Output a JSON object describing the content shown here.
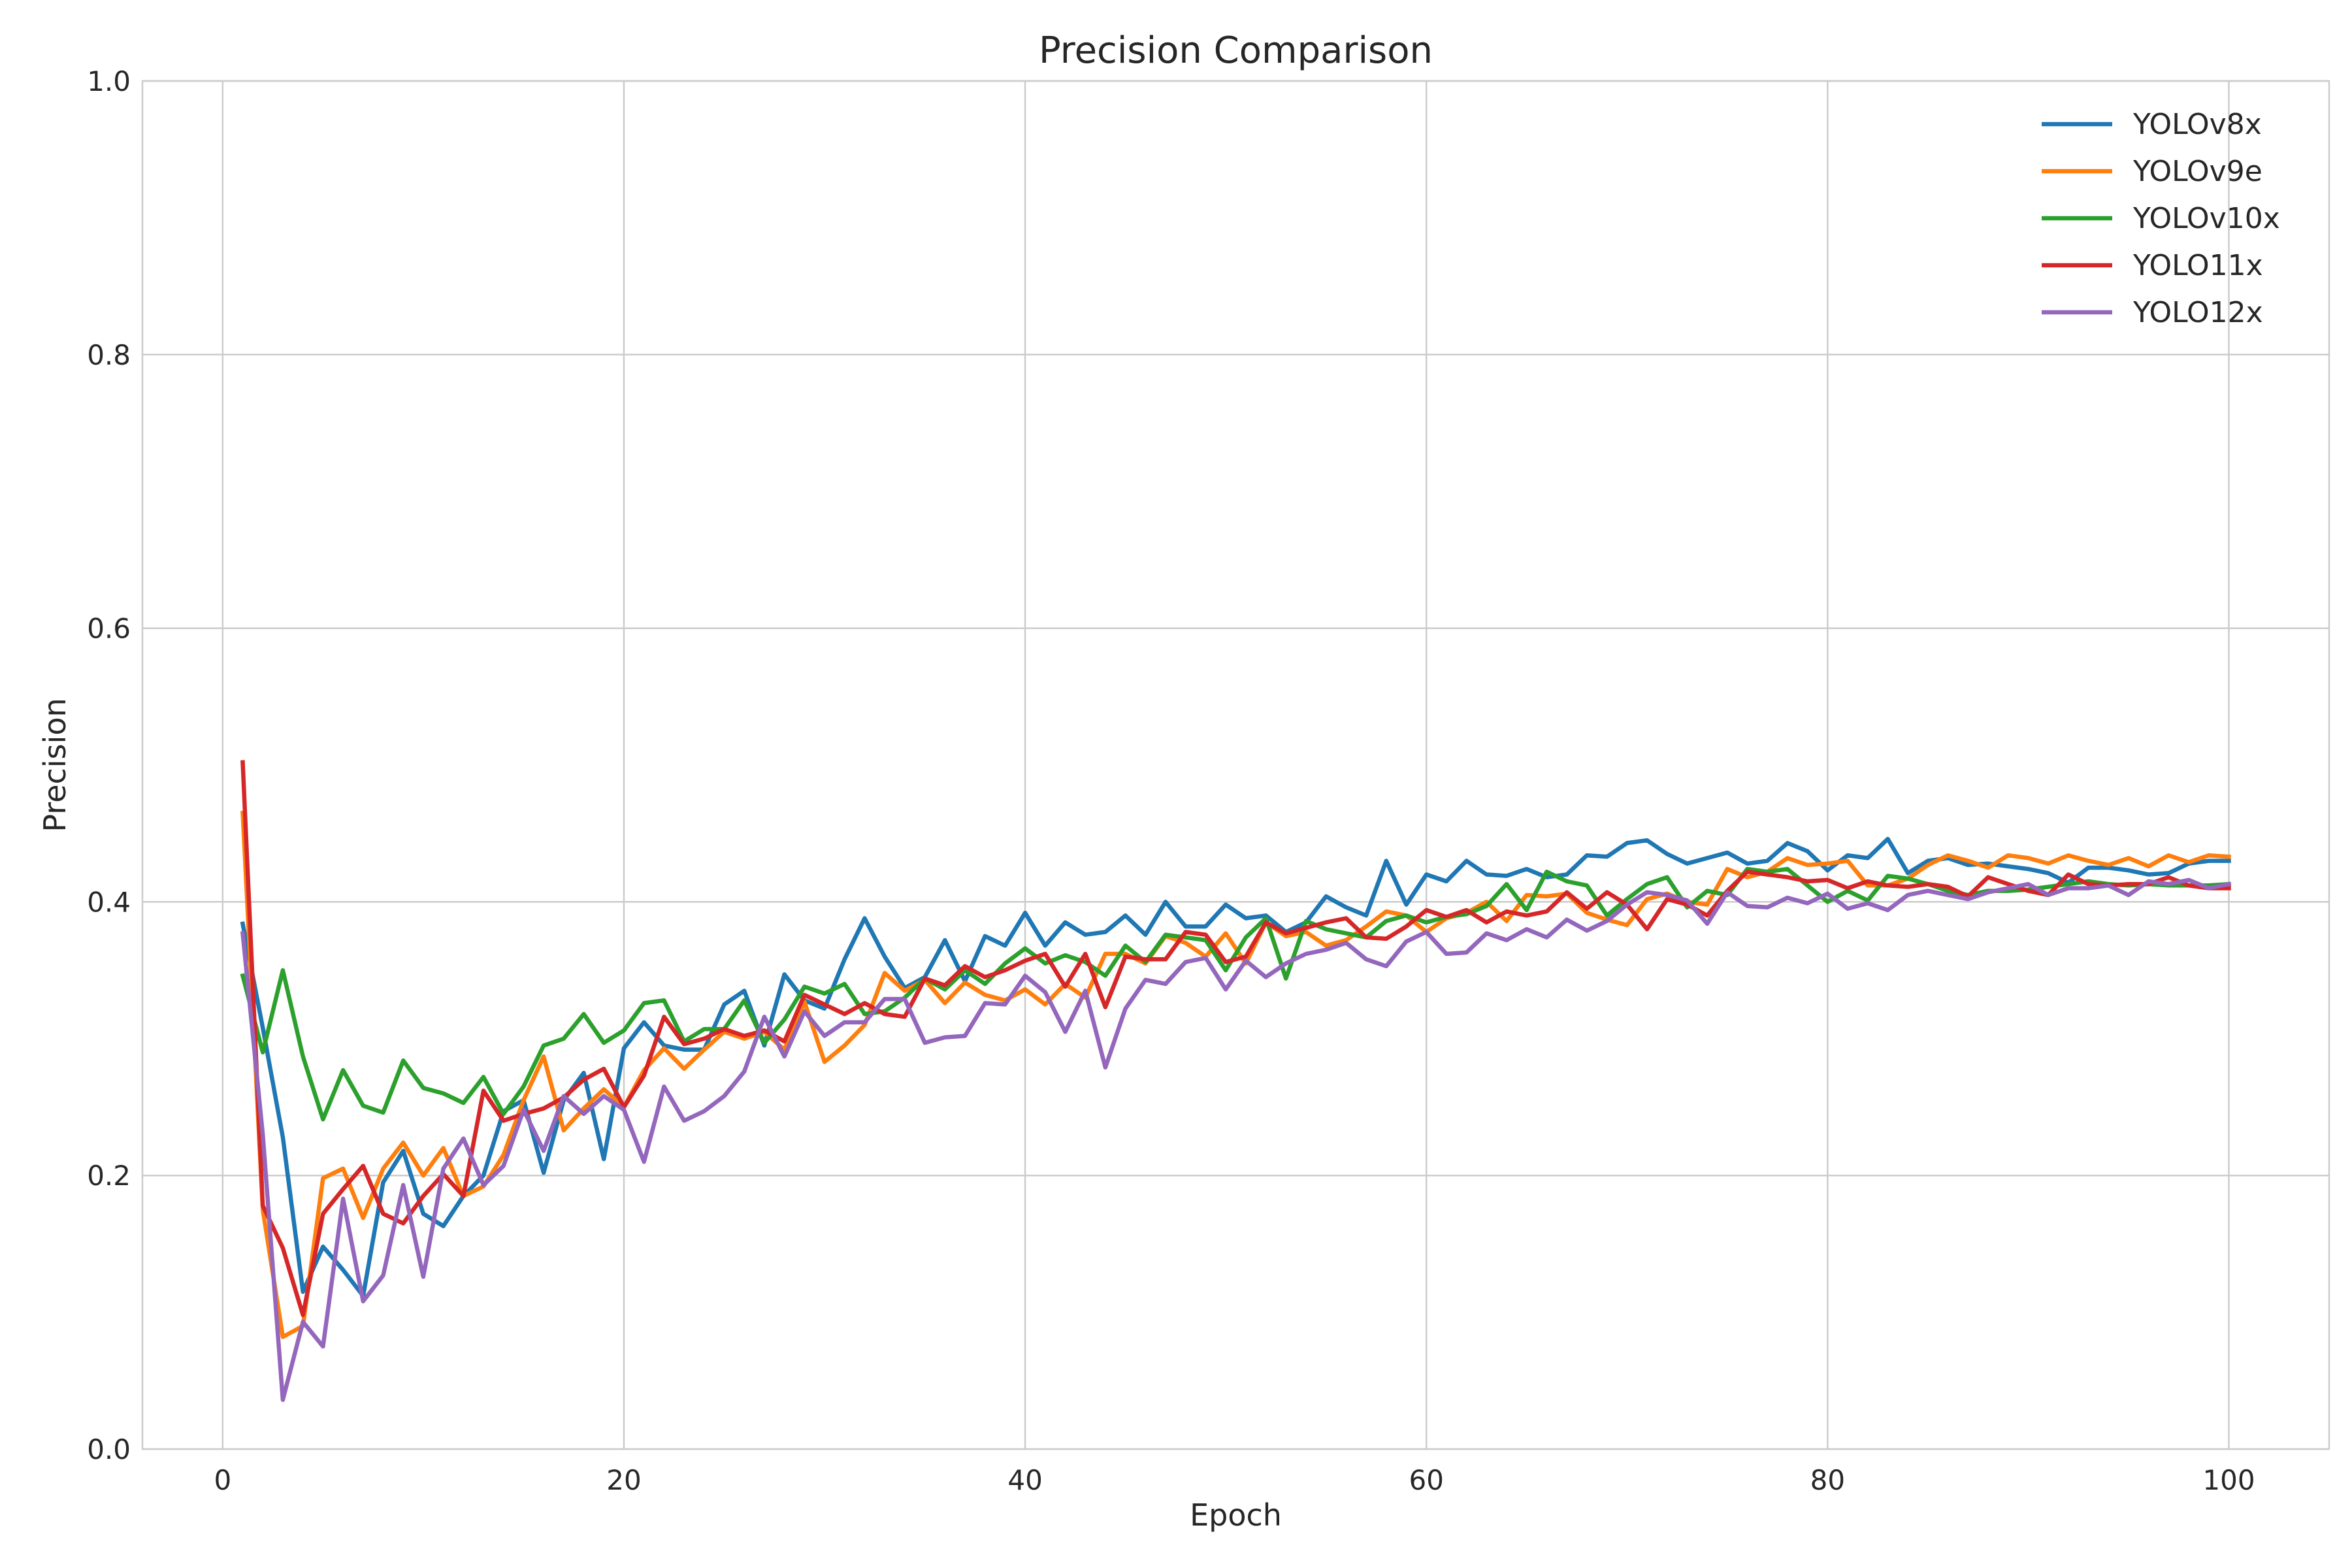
{
  "chart_data": {
    "type": "line",
    "title": "Precision Comparison",
    "xlabel": "Epoch",
    "ylabel": "Precision",
    "xlim": [
      -4,
      105
    ],
    "ylim": [
      0,
      1
    ],
    "xticks": [
      0,
      20,
      40,
      60,
      80,
      100
    ],
    "yticks": [
      0.0,
      0.2,
      0.4,
      0.6,
      0.8,
      1.0
    ],
    "xtick_labels": [
      "0",
      "20",
      "40",
      "60",
      "80",
      "100"
    ],
    "ytick_labels": [
      "0.0",
      "0.2",
      "0.4",
      "0.6",
      "0.8",
      "1.0"
    ],
    "grid": true,
    "legend_position": "top-right",
    "x": [
      1,
      2,
      3,
      4,
      5,
      6,
      7,
      8,
      9,
      10,
      11,
      12,
      13,
      14,
      15,
      16,
      17,
      18,
      19,
      20,
      21,
      22,
      23,
      24,
      25,
      26,
      27,
      28,
      29,
      30,
      31,
      32,
      33,
      34,
      35,
      36,
      37,
      38,
      39,
      40,
      41,
      42,
      43,
      44,
      45,
      46,
      47,
      48,
      49,
      50,
      51,
      52,
      53,
      54,
      55,
      56,
      57,
      58,
      59,
      60,
      61,
      62,
      63,
      64,
      65,
      66,
      67,
      68,
      69,
      70,
      71,
      72,
      73,
      74,
      75,
      76,
      77,
      78,
      79,
      80,
      81,
      82,
      83,
      84,
      85,
      86,
      87,
      88,
      89,
      90,
      91,
      92,
      93,
      94,
      95,
      96,
      97,
      98,
      99,
      100
    ],
    "series": [
      {
        "name": "YOLOv8x",
        "color": "#1f77b4",
        "values": [
          0.384,
          0.308,
          0.228,
          0.115,
          0.148,
          0.131,
          0.112,
          0.195,
          0.218,
          0.172,
          0.163,
          0.185,
          0.2,
          0.247,
          0.255,
          0.202,
          0.255,
          0.275,
          0.212,
          0.293,
          0.312,
          0.295,
          0.292,
          0.292,
          0.325,
          0.335,
          0.295,
          0.347,
          0.328,
          0.322,
          0.358,
          0.388,
          0.36,
          0.337,
          0.345,
          0.372,
          0.342,
          0.375,
          0.368,
          0.392,
          0.368,
          0.385,
          0.376,
          0.378,
          0.39,
          0.376,
          0.4,
          0.382,
          0.382,
          0.398,
          0.388,
          0.39,
          0.378,
          0.385,
          0.404,
          0.396,
          0.39,
          0.43,
          0.398,
          0.42,
          0.415,
          0.43,
          0.42,
          0.419,
          0.424,
          0.418,
          0.42,
          0.434,
          0.433,
          0.443,
          0.445,
          0.435,
          0.428,
          0.432,
          0.436,
          0.428,
          0.43,
          0.443,
          0.437,
          0.423,
          0.434,
          0.432,
          0.446,
          0.421,
          0.43,
          0.432,
          0.427,
          0.428,
          0.426,
          0.424,
          0.421,
          0.414,
          0.425,
          0.425,
          0.423,
          0.42,
          0.421,
          0.428,
          0.43,
          0.43
        ]
      },
      {
        "name": "YOLOv9e",
        "color": "#ff7f0e",
        "values": [
          0.465,
          0.175,
          0.082,
          0.09,
          0.198,
          0.205,
          0.169,
          0.205,
          0.224,
          0.2,
          0.22,
          0.185,
          0.192,
          0.215,
          0.255,
          0.287,
          0.233,
          0.249,
          0.263,
          0.25,
          0.277,
          0.293,
          0.278,
          0.292,
          0.305,
          0.3,
          0.305,
          0.292,
          0.327,
          0.283,
          0.295,
          0.31,
          0.348,
          0.335,
          0.343,
          0.326,
          0.341,
          0.332,
          0.328,
          0.336,
          0.325,
          0.34,
          0.33,
          0.362,
          0.362,
          0.355,
          0.375,
          0.37,
          0.36,
          0.377,
          0.355,
          0.385,
          0.375,
          0.378,
          0.368,
          0.372,
          0.382,
          0.393,
          0.39,
          0.378,
          0.388,
          0.392,
          0.4,
          0.386,
          0.405,
          0.404,
          0.406,
          0.392,
          0.387,
          0.383,
          0.402,
          0.406,
          0.4,
          0.398,
          0.424,
          0.418,
          0.422,
          0.432,
          0.427,
          0.428,
          0.43,
          0.412,
          0.412,
          0.417,
          0.427,
          0.434,
          0.43,
          0.425,
          0.434,
          0.432,
          0.428,
          0.434,
          0.43,
          0.427,
          0.432,
          0.426,
          0.434,
          0.429,
          0.434,
          0.433
        ]
      },
      {
        "name": "YOLOv10x",
        "color": "#2ca02c",
        "values": [
          0.346,
          0.29,
          0.35,
          0.287,
          0.241,
          0.277,
          0.251,
          0.246,
          0.284,
          0.264,
          0.26,
          0.253,
          0.272,
          0.245,
          0.265,
          0.295,
          0.3,
          0.318,
          0.297,
          0.306,
          0.326,
          0.328,
          0.298,
          0.307,
          0.307,
          0.328,
          0.297,
          0.314,
          0.338,
          0.333,
          0.34,
          0.318,
          0.32,
          0.33,
          0.344,
          0.336,
          0.35,
          0.34,
          0.355,
          0.366,
          0.355,
          0.361,
          0.356,
          0.346,
          0.368,
          0.356,
          0.376,
          0.374,
          0.372,
          0.35,
          0.374,
          0.388,
          0.344,
          0.386,
          0.38,
          0.377,
          0.374,
          0.386,
          0.39,
          0.385,
          0.389,
          0.391,
          0.397,
          0.413,
          0.394,
          0.422,
          0.415,
          0.412,
          0.39,
          0.402,
          0.413,
          0.418,
          0.396,
          0.408,
          0.405,
          0.424,
          0.422,
          0.424,
          0.412,
          0.4,
          0.408,
          0.401,
          0.419,
          0.417,
          0.413,
          0.408,
          0.405,
          0.408,
          0.408,
          0.409,
          0.411,
          0.413,
          0.415,
          0.413,
          0.412,
          0.413,
          0.412,
          0.412,
          0.412,
          0.413
        ]
      },
      {
        "name": "YOLO11x",
        "color": "#d62728",
        "values": [
          0.502,
          0.178,
          0.147,
          0.098,
          0.172,
          0.19,
          0.207,
          0.172,
          0.165,
          0.185,
          0.201,
          0.185,
          0.262,
          0.24,
          0.245,
          0.249,
          0.257,
          0.27,
          0.278,
          0.25,
          0.273,
          0.316,
          0.296,
          0.3,
          0.307,
          0.302,
          0.306,
          0.298,
          0.332,
          0.325,
          0.318,
          0.326,
          0.318,
          0.316,
          0.344,
          0.339,
          0.353,
          0.345,
          0.35,
          0.357,
          0.362,
          0.338,
          0.362,
          0.323,
          0.36,
          0.358,
          0.358,
          0.378,
          0.376,
          0.356,
          0.36,
          0.385,
          0.377,
          0.381,
          0.385,
          0.388,
          0.374,
          0.373,
          0.382,
          0.394,
          0.389,
          0.394,
          0.385,
          0.393,
          0.39,
          0.393,
          0.407,
          0.395,
          0.407,
          0.398,
          0.38,
          0.402,
          0.398,
          0.39,
          0.408,
          0.422,
          0.42,
          0.418,
          0.415,
          0.416,
          0.41,
          0.415,
          0.412,
          0.411,
          0.413,
          0.411,
          0.404,
          0.418,
          0.413,
          0.408,
          0.405,
          0.42,
          0.413,
          0.412,
          0.413,
          0.413,
          0.418,
          0.412,
          0.41,
          0.41
        ]
      },
      {
        "name": "YOLO12x",
        "color": "#9467bd",
        "values": [
          0.377,
          0.23,
          0.036,
          0.093,
          0.075,
          0.183,
          0.108,
          0.127,
          0.193,
          0.126,
          0.205,
          0.227,
          0.193,
          0.207,
          0.248,
          0.218,
          0.258,
          0.245,
          0.258,
          0.248,
          0.21,
          0.265,
          0.24,
          0.247,
          0.258,
          0.276,
          0.316,
          0.287,
          0.32,
          0.302,
          0.312,
          0.312,
          0.329,
          0.329,
          0.297,
          0.301,
          0.302,
          0.326,
          0.325,
          0.346,
          0.334,
          0.305,
          0.335,
          0.279,
          0.322,
          0.343,
          0.34,
          0.356,
          0.359,
          0.336,
          0.357,
          0.345,
          0.355,
          0.362,
          0.365,
          0.37,
          0.358,
          0.353,
          0.371,
          0.378,
          0.362,
          0.363,
          0.377,
          0.372,
          0.38,
          0.374,
          0.387,
          0.379,
          0.386,
          0.398,
          0.407,
          0.405,
          0.401,
          0.384,
          0.407,
          0.397,
          0.396,
          0.403,
          0.399,
          0.406,
          0.395,
          0.399,
          0.394,
          0.405,
          0.408,
          0.405,
          0.402,
          0.407,
          0.41,
          0.413,
          0.405,
          0.41,
          0.41,
          0.412,
          0.405,
          0.415,
          0.413,
          0.416,
          0.41,
          0.413
        ]
      }
    ]
  }
}
